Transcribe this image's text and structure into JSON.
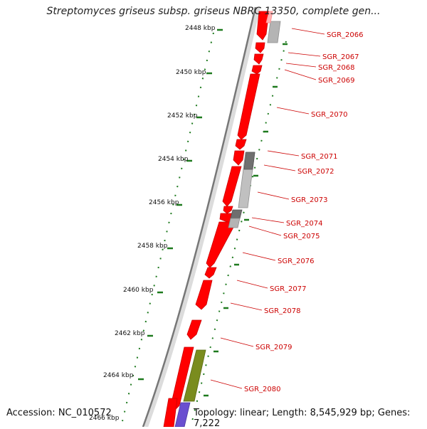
{
  "title": "Streptomyces griseus subsp. griseus NBRC 13350, complete gen...",
  "footer": {
    "accession": "Accession: NC_010572",
    "topology": "Topology: linear; Length: 8,545,929 bp; Genes: 7,222"
  },
  "axis_labels": [
    "2448 kbp",
    "2450 kbp",
    "2452 kbp",
    "2454 kbp",
    "2456 kbp",
    "2458 kbp",
    "2460 kbp",
    "2462 kbp",
    "2464 kbp",
    "2466 kbp"
  ],
  "gene_labels": [
    "SGR_2066",
    "SGR_2067",
    "SGR_2068",
    "SGR_2069",
    "SGR_2070",
    "SGR_2071",
    "SGR_2072",
    "SGR_2073",
    "SGR_2074",
    "SGR_2075",
    "SGR_2076",
    "SGR_2077",
    "SGR_2078",
    "SGR_2079",
    "SGR_2080"
  ],
  "colors": {
    "gene": "#ff0000",
    "gene_edge": "#cc0000",
    "tick": "#1e7a1e",
    "backbone": "#7a7a7a",
    "leader": "#cc0000"
  }
}
